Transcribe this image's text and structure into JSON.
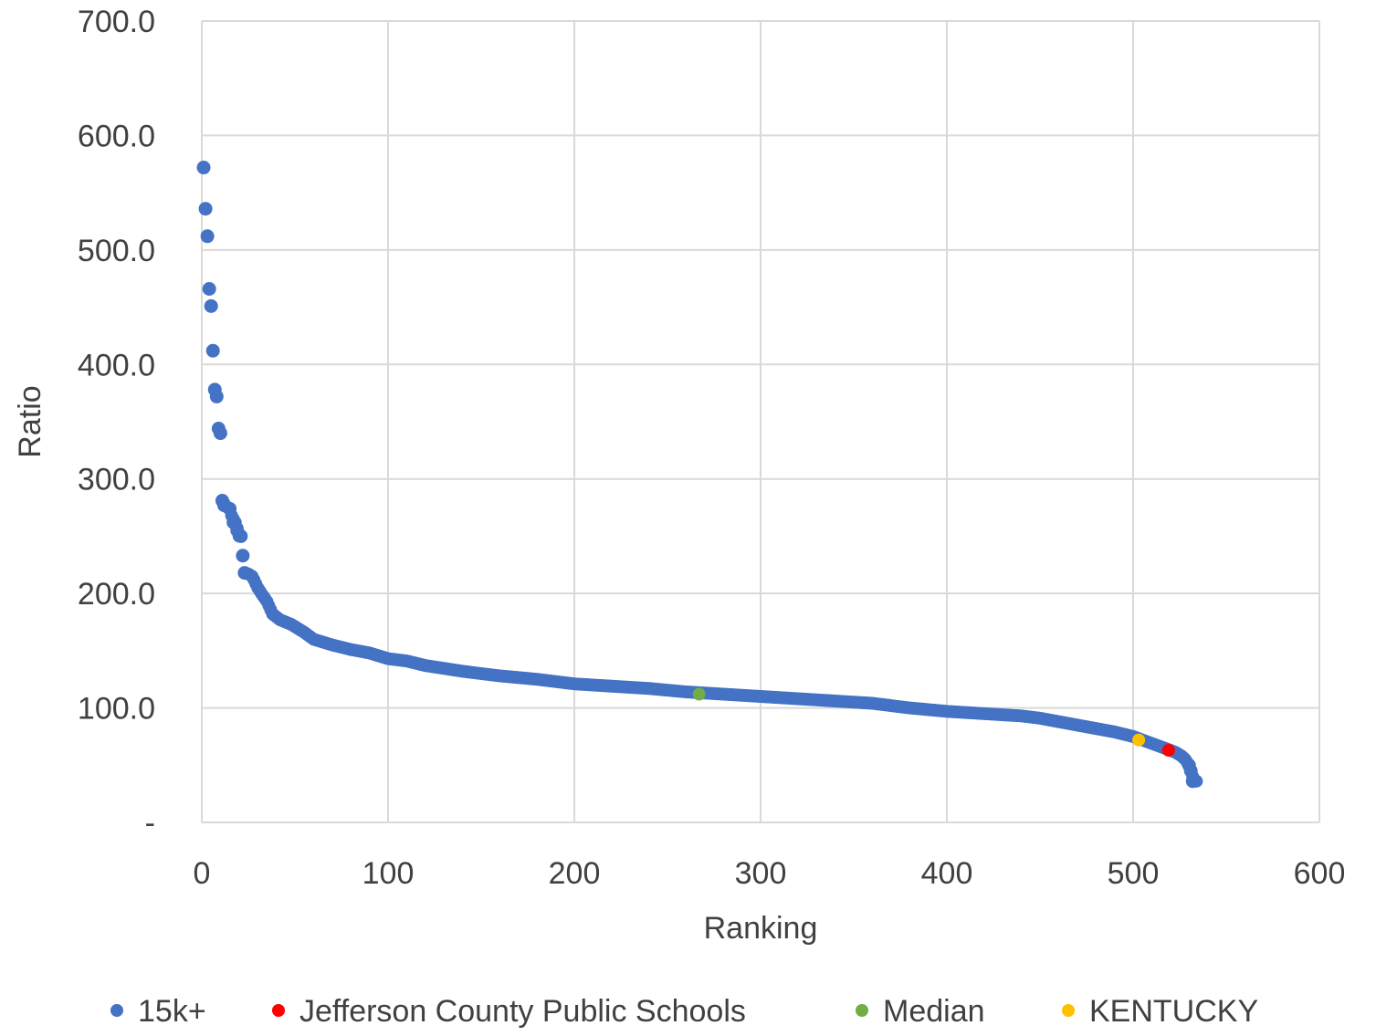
{
  "chart_data": {
    "type": "scatter",
    "xlabel": "Ranking",
    "ylabel": "Ratio",
    "xlim": [
      0,
      600
    ],
    "ylim": [
      0,
      700
    ],
    "x_ticks": [
      0,
      100,
      200,
      300,
      400,
      500,
      600
    ],
    "x_tick_labels": [
      "0",
      "100",
      "200",
      "300",
      "400",
      "500",
      "600"
    ],
    "y_ticks": [
      0,
      100,
      200,
      300,
      400,
      500,
      600,
      700
    ],
    "y_tick_labels": [
      "-",
      "100.0",
      "200.0",
      "300.0",
      "400.0",
      "500.0",
      "600.0",
      "700.0"
    ],
    "grid": true,
    "legend_position": "bottom",
    "series": [
      {
        "name": "15k+",
        "color": "#4472c4",
        "curve_anchors": [
          [
            1,
            572
          ],
          [
            2,
            536
          ],
          [
            3,
            512
          ],
          [
            4,
            466
          ],
          [
            5,
            451
          ],
          [
            6,
            412
          ],
          [
            7,
            378
          ],
          [
            8,
            372
          ],
          [
            9,
            344
          ],
          [
            10,
            340
          ],
          [
            11,
            281
          ],
          [
            13,
            276
          ],
          [
            15,
            274
          ],
          [
            16,
            268
          ],
          [
            18,
            262
          ],
          [
            19,
            257
          ],
          [
            20,
            250
          ],
          [
            21,
            250
          ],
          [
            22,
            233
          ],
          [
            23,
            218
          ],
          [
            25,
            217
          ],
          [
            27,
            215
          ],
          [
            28,
            212
          ],
          [
            30,
            205
          ],
          [
            32,
            200
          ],
          [
            35,
            193
          ],
          [
            38,
            182
          ],
          [
            42,
            177
          ],
          [
            45,
            175
          ],
          [
            48,
            173
          ],
          [
            50,
            171
          ],
          [
            55,
            166
          ],
          [
            60,
            160
          ],
          [
            70,
            155
          ],
          [
            80,
            151
          ],
          [
            90,
            148
          ],
          [
            100,
            143
          ],
          [
            110,
            141
          ],
          [
            120,
            137
          ],
          [
            140,
            132
          ],
          [
            160,
            128
          ],
          [
            180,
            125
          ],
          [
            200,
            121
          ],
          [
            220,
            119
          ],
          [
            240,
            117
          ],
          [
            260,
            114
          ],
          [
            280,
            112
          ],
          [
            300,
            110
          ],
          [
            320,
            108
          ],
          [
            340,
            106
          ],
          [
            360,
            104
          ],
          [
            380,
            100
          ],
          [
            400,
            97
          ],
          [
            420,
            95
          ],
          [
            440,
            93
          ],
          [
            450,
            91
          ],
          [
            460,
            88
          ],
          [
            470,
            85
          ],
          [
            480,
            82
          ],
          [
            490,
            79
          ],
          [
            500,
            75
          ],
          [
            510,
            69
          ],
          [
            515,
            66
          ],
          [
            520,
            63
          ],
          [
            523,
            61
          ],
          [
            526,
            58
          ],
          [
            528,
            55
          ],
          [
            530,
            50
          ],
          [
            531,
            45
          ],
          [
            532,
            40
          ],
          [
            533,
            37
          ],
          [
            534,
            36
          ]
        ],
        "highlight_points": [
          [
            1,
            572
          ],
          [
            2,
            536
          ],
          [
            3,
            512
          ],
          [
            4,
            466
          ],
          [
            5,
            451
          ],
          [
            6,
            412
          ],
          [
            7,
            378
          ],
          [
            8,
            372
          ],
          [
            9,
            344
          ],
          [
            10,
            340
          ],
          [
            11,
            281
          ],
          [
            12,
            277
          ],
          [
            15,
            274
          ],
          [
            17,
            262
          ],
          [
            19,
            255
          ],
          [
            21,
            250
          ],
          [
            22,
            233
          ],
          [
            23,
            218
          ],
          [
            530,
            50
          ],
          [
            531,
            45
          ],
          [
            532,
            36
          ]
        ]
      },
      {
        "name": "Jefferson County Public Schools",
        "color": "#ff0000",
        "points": [
          [
            519,
            63
          ]
        ]
      },
      {
        "name": "Median",
        "color": "#70ad47",
        "points": [
          [
            267,
            112
          ]
        ]
      },
      {
        "name": "KENTUCKY",
        "color": "#ffc000",
        "points": [
          [
            503,
            72
          ]
        ]
      }
    ]
  }
}
